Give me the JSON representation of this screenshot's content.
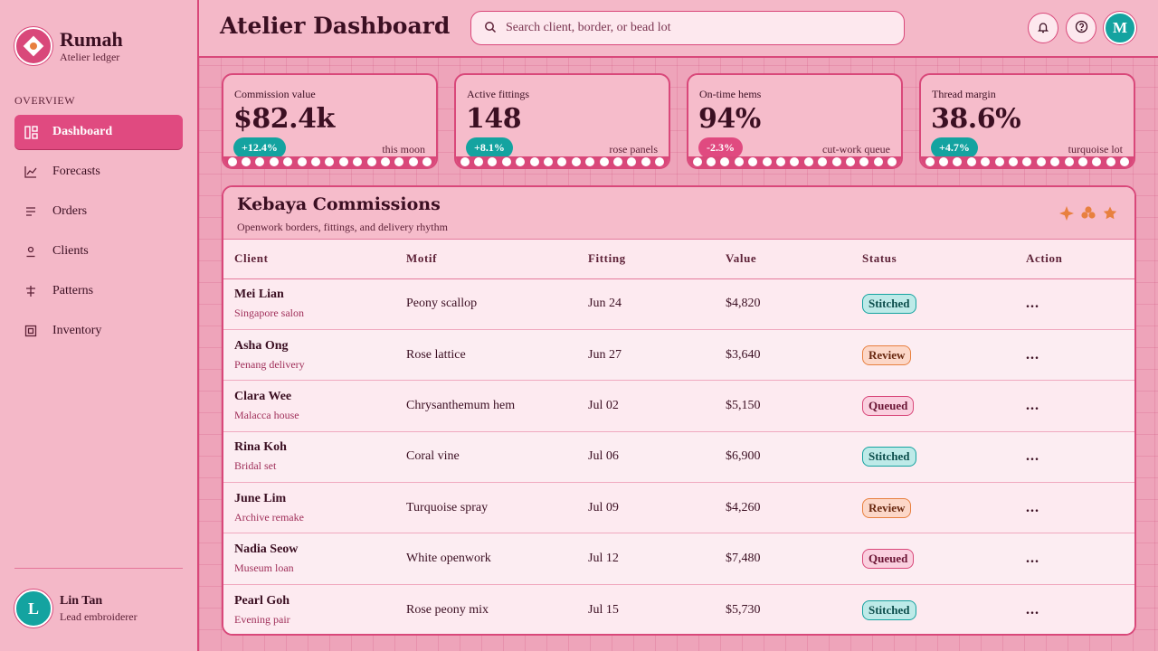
{
  "brand": {
    "name": "Rumah",
    "subtitle": "Atelier ledger"
  },
  "sidebar": {
    "section_label": "OVERVIEW",
    "items": [
      {
        "label": "Dashboard",
        "icon": "dashboard-icon",
        "active": true
      },
      {
        "label": "Forecasts",
        "icon": "line-chart-icon"
      },
      {
        "label": "Orders",
        "icon": "list-icon"
      },
      {
        "label": "Clients",
        "icon": "user-icon"
      },
      {
        "label": "Patterns",
        "icon": "pattern-icon"
      },
      {
        "label": "Inventory",
        "icon": "box-icon"
      }
    ],
    "user": {
      "initial": "L",
      "name": "Lin Tan",
      "role": "Lead embroiderer"
    }
  },
  "header": {
    "title": "Atelier Dashboard",
    "search_placeholder": "Search client, border, or bead lot",
    "avatar_initial": "M"
  },
  "stats": [
    {
      "label": "Commission value",
      "value": "$82.4k",
      "delta": "+12.4%",
      "trend": "up",
      "note": "this moon"
    },
    {
      "label": "Active fittings",
      "value": "148",
      "delta": "+8.1%",
      "trend": "up",
      "note": "rose panels"
    },
    {
      "label": "On-time hems",
      "value": "94%",
      "delta": "-2.3%",
      "trend": "down",
      "note": "cut-work queue"
    },
    {
      "label": "Thread margin",
      "value": "38.6%",
      "delta": "+4.7%",
      "trend": "up",
      "note": "turquoise lot"
    }
  ],
  "table": {
    "title": "Kebaya Commissions",
    "subtitle": "Openwork borders, fittings, and delivery rhythm",
    "columns": [
      "Client",
      "Motif",
      "Fitting",
      "Value",
      "Status",
      "Action"
    ],
    "rows": [
      {
        "client": "Mei Lian",
        "sub": "Singapore salon",
        "motif": "Peony scallop",
        "fitting": "Jun 24",
        "value": "$4,820",
        "status": "Stitched",
        "action": "..."
      },
      {
        "client": "Asha Ong",
        "sub": "Penang delivery",
        "motif": "Rose lattice",
        "fitting": "Jun 27",
        "value": "$3,640",
        "status": "Review",
        "action": "..."
      },
      {
        "client": "Clara Wee",
        "sub": "Malacca house",
        "motif": "Chrysanthemum hem",
        "fitting": "Jul 02",
        "value": "$5,150",
        "status": "Queued",
        "action": "..."
      },
      {
        "client": "Rina Koh",
        "sub": "Bridal set",
        "motif": "Coral vine",
        "fitting": "Jul 06",
        "value": "$6,900",
        "status": "Stitched",
        "action": "..."
      },
      {
        "client": "June Lim",
        "sub": "Archive remake",
        "motif": "Turquoise spray",
        "fitting": "Jul 09",
        "value": "$4,260",
        "status": "Review",
        "action": "..."
      },
      {
        "client": "Nadia Seow",
        "sub": "Museum loan",
        "motif": "White openwork",
        "fitting": "Jul 12",
        "value": "$7,480",
        "status": "Queued",
        "action": "..."
      },
      {
        "client": "Pearl Goh",
        "sub": "Evening pair",
        "motif": "Rose peony mix",
        "fitting": "Jul 15",
        "value": "$5,730",
        "status": "Stitched",
        "action": "..."
      }
    ]
  },
  "colors": {
    "accent": "#e04a80",
    "teal": "#14a3a0",
    "background": "#f4b8c8"
  }
}
